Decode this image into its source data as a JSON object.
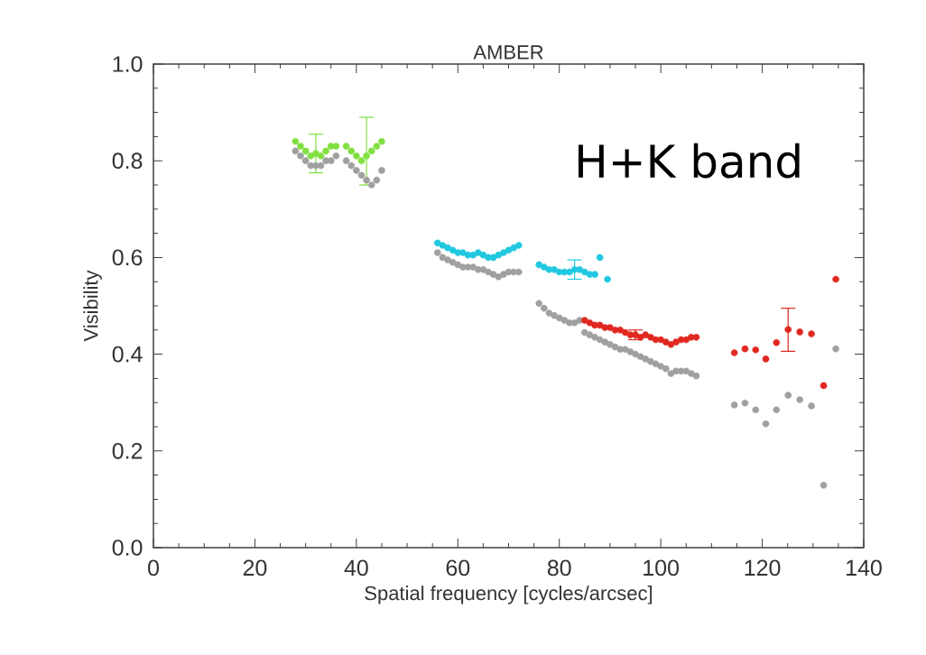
{
  "chart_data": {
    "type": "scatter",
    "title": "AMBER",
    "xlabel": "Spatial frequency [cycles/arcsec]",
    "ylabel": "Visibility",
    "annotations": [
      "H+K band"
    ],
    "xlim": [
      0,
      140
    ],
    "ylim": [
      0,
      1
    ],
    "xticks": [
      0,
      20,
      40,
      60,
      80,
      100,
      120,
      140
    ],
    "yticks": [
      {
        "value": 0,
        "label": "0.0"
      },
      {
        "value": 0.2,
        "label": "0.2"
      },
      {
        "value": 0.4,
        "label": "0.4"
      },
      {
        "value": 0.6,
        "label": "0.6"
      },
      {
        "value": 0.8,
        "label": "0.8"
      },
      {
        "value": 1,
        "label": "1.0"
      }
    ],
    "marker": "circle",
    "series": [
      {
        "color": "#a0a0a0",
        "x": [
          28,
          29,
          30,
          31,
          32,
          33,
          34,
          35,
          36,
          38,
          39,
          40,
          41,
          42,
          43,
          44,
          45,
          56,
          57,
          58,
          59,
          60,
          61,
          62,
          63,
          64,
          65,
          66,
          67,
          68,
          69,
          70,
          71,
          72,
          76,
          77,
          78,
          79,
          80,
          81,
          82,
          83,
          84,
          85,
          86,
          87,
          88,
          89,
          90,
          91,
          92,
          93,
          94,
          95,
          96,
          97,
          98,
          99,
          100,
          101,
          102,
          103,
          104,
          105,
          106,
          107,
          114.5,
          116.6,
          118.7,
          120.7,
          122.8,
          125.1,
          127.4,
          129.7,
          132.1,
          134.5
        ],
        "values": [
          0.82,
          0.81,
          0.8,
          0.79,
          0.79,
          0.79,
          0.8,
          0.8,
          0.81,
          0.8,
          0.79,
          0.78,
          0.77,
          0.76,
          0.75,
          0.76,
          0.78,
          0.61,
          0.6,
          0.595,
          0.59,
          0.585,
          0.58,
          0.58,
          0.58,
          0.575,
          0.575,
          0.57,
          0.565,
          0.56,
          0.565,
          0.57,
          0.57,
          0.57,
          0.505,
          0.495,
          0.485,
          0.48,
          0.475,
          0.47,
          0.465,
          0.465,
          0.47,
          0.445,
          0.44,
          0.435,
          0.43,
          0.425,
          0.42,
          0.415,
          0.41,
          0.41,
          0.405,
          0.4,
          0.395,
          0.39,
          0.385,
          0.38,
          0.375,
          0.37,
          0.36,
          0.365,
          0.365,
          0.365,
          0.36,
          0.355,
          0.295,
          0.299,
          0.285,
          0.256,
          0.285,
          0.315,
          0.306,
          0.293,
          0.129,
          0.411
        ]
      },
      {
        "color": "#80e040",
        "x": [
          28,
          29,
          30,
          31,
          32,
          33,
          34,
          35,
          36,
          38,
          39,
          40,
          41,
          42,
          43,
          44,
          45
        ],
        "values": [
          0.84,
          0.83,
          0.82,
          0.81,
          0.815,
          0.81,
          0.82,
          0.83,
          0.83,
          0.83,
          0.82,
          0.81,
          0.8,
          0.81,
          0.82,
          0.83,
          0.84
        ],
        "errors": [
          null,
          null,
          null,
          null,
          0.04,
          null,
          null,
          null,
          null,
          null,
          null,
          null,
          null,
          [
            0.75,
            0.89
          ],
          null,
          null,
          null
        ]
      },
      {
        "color": "#20c8e0",
        "x": [
          56,
          57,
          58,
          59,
          60,
          61,
          62,
          63,
          64,
          65,
          66,
          67,
          68,
          69,
          70,
          71,
          72,
          76,
          77,
          78,
          79,
          80,
          81,
          82,
          83,
          84,
          85,
          86,
          87,
          88,
          89.5
        ],
        "values": [
          0.63,
          0.625,
          0.62,
          0.615,
          0.61,
          0.61,
          0.605,
          0.605,
          0.61,
          0.605,
          0.6,
          0.6,
          0.605,
          0.61,
          0.615,
          0.62,
          0.625,
          0.585,
          0.58,
          0.575,
          0.575,
          0.57,
          0.57,
          0.57,
          0.575,
          0.575,
          0.57,
          0.565,
          0.565,
          0.6,
          0.555
        ],
        "errors": [
          null,
          null,
          null,
          null,
          null,
          null,
          null,
          null,
          null,
          null,
          null,
          null,
          null,
          null,
          null,
          null,
          null,
          null,
          null,
          null,
          null,
          null,
          null,
          null,
          0.02,
          null,
          null,
          null,
          null,
          null,
          null
        ]
      },
      {
        "color": "#e02820",
        "x": [
          85,
          86,
          87,
          88,
          89,
          90,
          91,
          92,
          93,
          94,
          95,
          96,
          97,
          98,
          99,
          100,
          101,
          102,
          103,
          104,
          105,
          106,
          107,
          114.5,
          116.6,
          118.7,
          120.7,
          122.8,
          125.1,
          127.4,
          129.7,
          132.1,
          134.5
        ],
        "values": [
          0.47,
          0.465,
          0.46,
          0.46,
          0.455,
          0.455,
          0.45,
          0.45,
          0.445,
          0.44,
          0.44,
          0.435,
          0.44,
          0.435,
          0.43,
          0.43,
          0.425,
          0.42,
          0.425,
          0.43,
          0.43,
          0.435,
          0.435,
          0.403,
          0.411,
          0.409,
          0.39,
          0.424,
          0.451,
          0.446,
          0.442,
          0.335,
          0.555
        ],
        "errors": [
          null,
          null,
          null,
          null,
          null,
          null,
          null,
          null,
          null,
          null,
          0.01,
          null,
          null,
          null,
          null,
          null,
          null,
          null,
          null,
          null,
          null,
          null,
          null,
          null,
          null,
          null,
          null,
          null,
          [
            0.406,
            0.495
          ],
          null,
          null,
          null,
          null
        ]
      }
    ]
  }
}
